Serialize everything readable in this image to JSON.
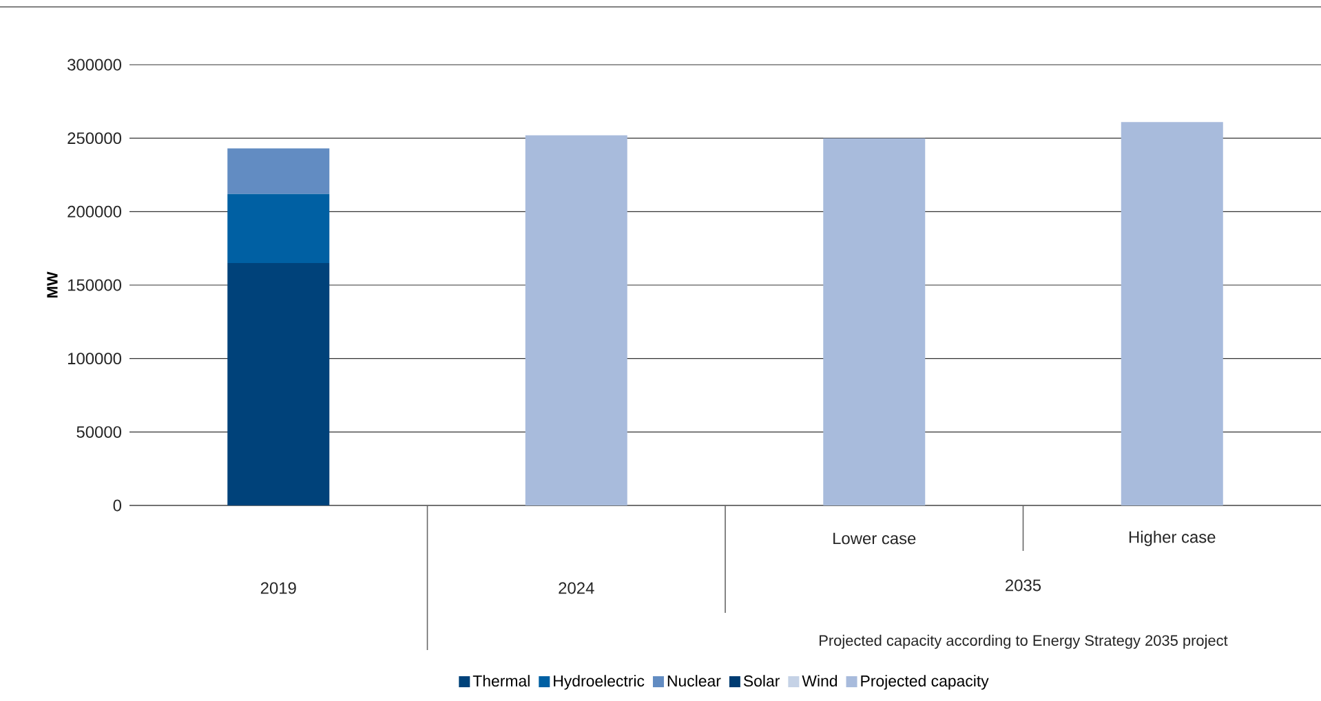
{
  "chart_data": {
    "type": "bar",
    "stacked": true,
    "ylabel": "MW",
    "categories": [
      "2019",
      "2024",
      "Lower case",
      "Higher case"
    ],
    "series": [
      {
        "name": "Thermal",
        "color": "#00427a",
        "values": [
          165000,
          null,
          null,
          null
        ]
      },
      {
        "name": "Hydroelectric",
        "color": "#0060a3",
        "values": [
          47000,
          null,
          null,
          null
        ]
      },
      {
        "name": "Nuclear",
        "color": "#628cc2",
        "values": [
          31000,
          null,
          null,
          null
        ]
      },
      {
        "name": "Solar",
        "color": "#003c72",
        "values": [
          null,
          null,
          null,
          null
        ]
      },
      {
        "name": "Wind",
        "color": "#c5d2e6",
        "values": [
          null,
          null,
          null,
          null
        ]
      },
      {
        "name": "Projected capacity",
        "color": "#a8bbdc",
        "values": [
          null,
          252000,
          250000,
          261000
        ]
      }
    ],
    "ylim": [
      0,
      300000
    ],
    "yticks": [
      0,
      50000,
      100000,
      150000,
      200000,
      250000,
      300000
    ],
    "grid": "y",
    "legend": "bottom",
    "annotations": [
      "2035",
      "Projected capacity according to Energy Strategy 2035 project"
    ]
  }
}
